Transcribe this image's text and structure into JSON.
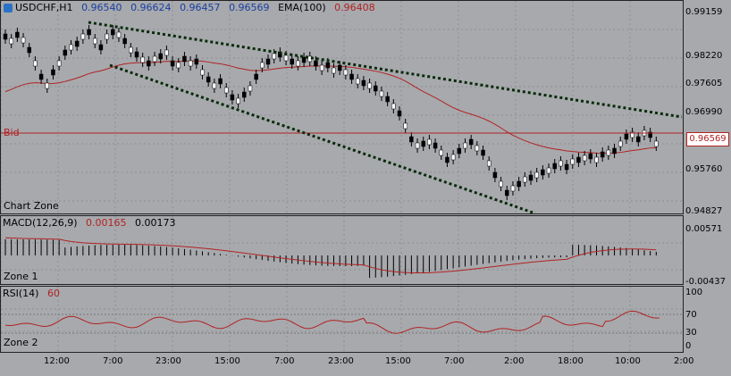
{
  "header": {
    "symbol": "USDCHF,H1",
    "open": "0.96540",
    "high": "0.96624",
    "low": "0.96457",
    "close": "0.96569",
    "ema_label": "EMA(100)",
    "ema_value": "0.96408",
    "bid_label": "Bid",
    "bid_value": "0.96569"
  },
  "main": {
    "zone_label": "Chart Zone",
    "price_ticks": [
      "0.99159",
      "0.98220",
      "0.97605",
      "0.96990",
      "0.96569",
      "0.95760",
      "0.94827"
    ]
  },
  "macd": {
    "label": "MACD(12,26,9)",
    "value1": "0.00165",
    "value2": "0.00173",
    "zone_label": "Zone 1",
    "ticks": [
      "0.00571",
      "-0.00437"
    ]
  },
  "rsi": {
    "label": "RSI(14)",
    "value": "60",
    "zone_label": "Zone 2",
    "ticks": [
      "100",
      "70",
      "30",
      "0"
    ]
  },
  "time_axis": [
    "12:00",
    "7:00",
    "23:00",
    "15:00",
    "7:00",
    "23:00",
    "15:00",
    "7:00",
    "2:00",
    "18:00",
    "10:00",
    "2:00"
  ],
  "colors": {
    "up_candle": "#ffffff",
    "down_candle": "#000000",
    "wick": "#000000",
    "ema": "#b22222",
    "trendline": "#0a2a0a",
    "bid_line": "#b22222",
    "blue_value": "#1a3fa0",
    "red_value": "#b22222"
  }
}
